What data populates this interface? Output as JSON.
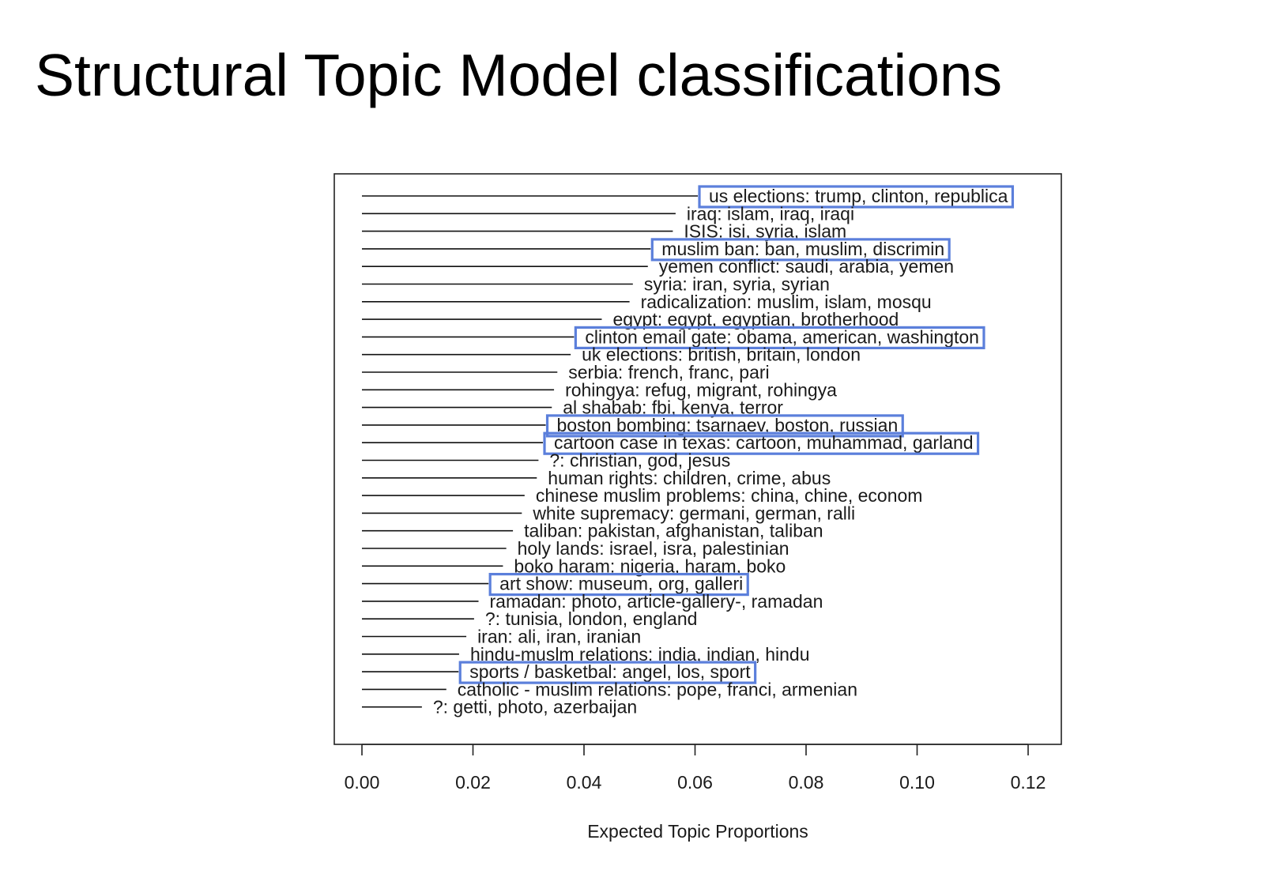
{
  "slide": {
    "title": "Structural Topic Model classifications"
  },
  "chart_data": {
    "type": "bar",
    "orientation": "horizontal",
    "mark": "line-segment",
    "xlabel": "Expected Topic Proportions",
    "ylabel": "",
    "xlim": [
      0,
      0.125
    ],
    "xticks": [
      "0.00",
      "0.02",
      "0.04",
      "0.06",
      "0.08",
      "0.10",
      "0.12"
    ],
    "grid": false,
    "legend": "none",
    "highlight_color": "#5b7fdb",
    "line_color": "#111111",
    "topics": [
      {
        "label": "us elections: trump, clinton, republica",
        "value": 0.0605,
        "highlighted": true
      },
      {
        "label": "iraq: islam, iraq, iraqi",
        "value": 0.0565,
        "highlighted": false
      },
      {
        "label": "ISIS: isi, syria, islam",
        "value": 0.056,
        "highlighted": false
      },
      {
        "label": "muslim ban: ban, muslim, discrimin",
        "value": 0.052,
        "highlighted": true
      },
      {
        "label": "yemen conflict: saudi, arabia, yemen",
        "value": 0.0515,
        "highlighted": false
      },
      {
        "label": "syria: iran, syria, syrian",
        "value": 0.0488,
        "highlighted": false
      },
      {
        "label": "radicalization: muslim, islam, mosqu",
        "value": 0.0482,
        "highlighted": false
      },
      {
        "label": "egypt: egypt, egyptian, brotherhood",
        "value": 0.0432,
        "highlighted": false
      },
      {
        "label": "clinton email gate: obama, american, washington",
        "value": 0.0382,
        "highlighted": true
      },
      {
        "label": "uk elections: british, britain, london",
        "value": 0.0376,
        "highlighted": false
      },
      {
        "label": "serbia: french, franc, pari",
        "value": 0.0352,
        "highlighted": false
      },
      {
        "label": "rohingya: refug, migrant, rohingya",
        "value": 0.0346,
        "highlighted": false
      },
      {
        "label": "al shabab: fbi, kenya, terror",
        "value": 0.0342,
        "highlighted": false
      },
      {
        "label": "boston bombing: tsarnaev, boston, russian",
        "value": 0.0331,
        "highlighted": true
      },
      {
        "label": "cartoon case in texas: cartoon, muhammad, garland",
        "value": 0.0326,
        "highlighted": true
      },
      {
        "label": "?: christian, god, jesus",
        "value": 0.0318,
        "highlighted": false
      },
      {
        "label": "human rights: children, crime, abus",
        "value": 0.0315,
        "highlighted": false
      },
      {
        "label": "chinese muslim problems: china, chine, econom",
        "value": 0.0293,
        "highlighted": false
      },
      {
        "label": "white supremacy: germani, german, ralli",
        "value": 0.0288,
        "highlighted": false
      },
      {
        "label": "taliban: pakistan, afghanistan, taliban",
        "value": 0.0272,
        "highlighted": false
      },
      {
        "label": "holy lands: israel, isra, palestinian",
        "value": 0.026,
        "highlighted": false
      },
      {
        "label": "boko haram: nigeria, haram, boko",
        "value": 0.0254,
        "highlighted": false
      },
      {
        "label": "art show: museum, org, galleri",
        "value": 0.0228,
        "highlighted": true
      },
      {
        "label": "ramadan: photo, article-gallery-, ramadan",
        "value": 0.021,
        "highlighted": false
      },
      {
        "label": "?: tunisia, london, england",
        "value": 0.0202,
        "highlighted": false
      },
      {
        "label": "iran: ali, iran, iranian",
        "value": 0.0188,
        "highlighted": false
      },
      {
        "label": "hindu-muslm relations: india, indian, hindu",
        "value": 0.0175,
        "highlighted": false
      },
      {
        "label": "sports / basketbal: angel, los, sport",
        "value": 0.0174,
        "highlighted": true
      },
      {
        "label": "catholic - muslim relations: pope, franci, armenian",
        "value": 0.0152,
        "highlighted": false
      },
      {
        "label": "?: getti, photo, azerbaijan",
        "value": 0.0108,
        "highlighted": false
      }
    ]
  }
}
